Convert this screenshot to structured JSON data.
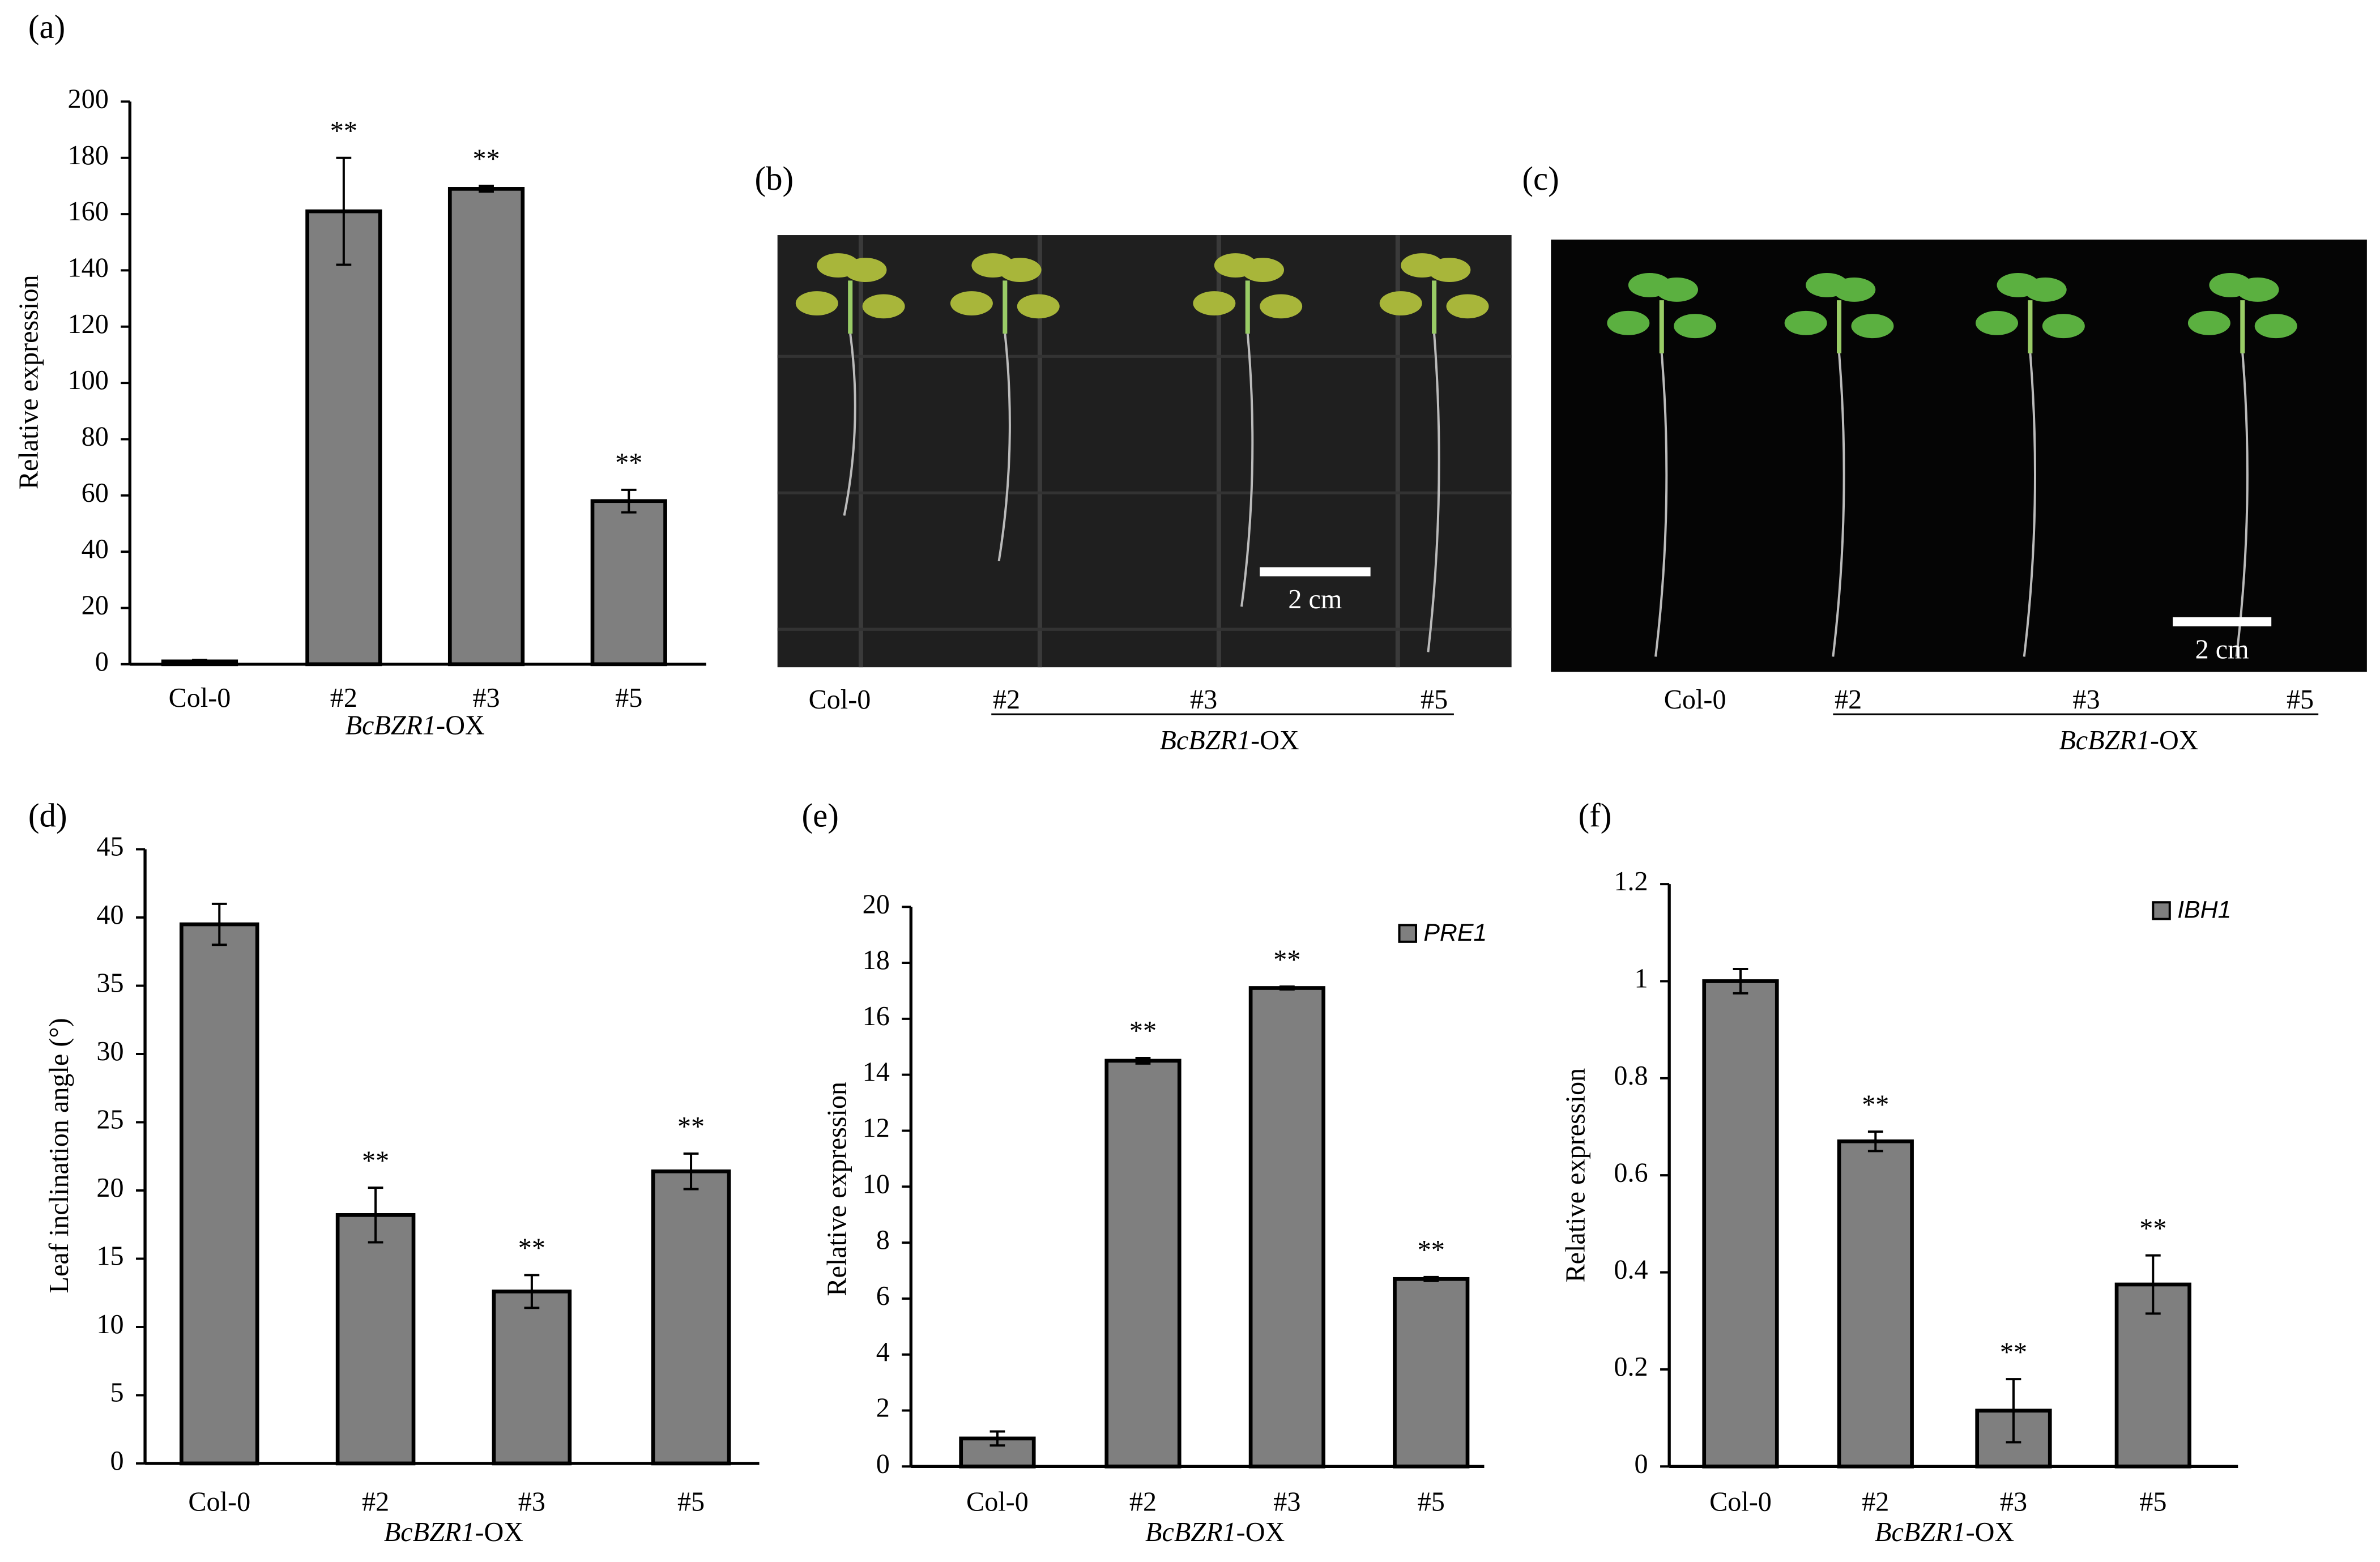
{
  "chart_data": [
    {
      "type": "bar",
      "panel_label": "(a)",
      "ylabel": "Relative expression",
      "xlabel_italic": "BcBZR1",
      "xlabel_roman": "-OX",
      "categories": [
        "Col-0",
        "#2",
        "#3",
        "#5"
      ],
      "values": [
        1,
        161,
        169,
        58
      ],
      "errors": [
        0.5,
        19,
        1,
        4
      ],
      "significance": [
        null,
        "**",
        "**",
        "**"
      ],
      "color": "#7f7f7f",
      "ylim": [
        0,
        200
      ],
      "yticks": [
        0,
        20,
        40,
        60,
        80,
        100,
        120,
        140,
        160,
        180,
        200
      ]
    },
    {
      "type": "bar",
      "panel_label": "(d)",
      "ylabel": "Leaf inclination angle (°)",
      "xlabel_italic": "BcBZR1",
      "xlabel_roman": "-OX",
      "categories": [
        "Col-0",
        "#2",
        "#3",
        "#5"
      ],
      "values": [
        39.5,
        18.2,
        12.6,
        21.4
      ],
      "errors": [
        1.5,
        2,
        1.2,
        1.3
      ],
      "significance": [
        null,
        "**",
        "**",
        "**"
      ],
      "color": "#7f7f7f",
      "ylim": [
        0,
        45
      ],
      "yticks": [
        0,
        5,
        10,
        15,
        20,
        25,
        30,
        35,
        40,
        45
      ]
    },
    {
      "type": "bar",
      "panel_label": "(e)",
      "ylabel": "Relative expression",
      "xlabel_italic": "BcBZR1",
      "xlabel_roman": "-OX",
      "legend": "PRE1",
      "legend_loc": "upper right",
      "categories": [
        "Col-0",
        "#2",
        "#3",
        "#5"
      ],
      "values": [
        1.0,
        14.5,
        17.1,
        6.7
      ],
      "errors": [
        0.25,
        0.1,
        0.05,
        0.07
      ],
      "significance": [
        null,
        "**",
        "**",
        "**"
      ],
      "color": "#7f7f7f",
      "ylim": [
        0,
        20
      ],
      "yticks": [
        0,
        2,
        4,
        6,
        8,
        10,
        12,
        14,
        16,
        18,
        20
      ]
    },
    {
      "type": "bar",
      "panel_label": "(f)",
      "ylabel": "Relative expression",
      "xlabel_italic": "BcBZR1",
      "xlabel_roman": "-OX",
      "legend": "IBH1",
      "legend_loc": "upper right",
      "categories": [
        "Col-0",
        "#2",
        "#3",
        "#5"
      ],
      "values": [
        1.0,
        0.67,
        0.115,
        0.375
      ],
      "errors": [
        0.025,
        0.02,
        0.065,
        0.06
      ],
      "significance": [
        null,
        "**",
        "**",
        "**"
      ],
      "color": "#7f7f7f",
      "ylim": [
        0,
        1.2
      ],
      "yticks": [
        0,
        0.2,
        0.4,
        0.6,
        0.8,
        1,
        1.2
      ]
    }
  ],
  "photos": [
    {
      "panel_label": "(b)",
      "categories": [
        "Col-0",
        "#2",
        "#3",
        "#5"
      ],
      "group_label_italic": "BcBZR1",
      "group_label_roman": "-OX",
      "scale_bar": "2 cm"
    },
    {
      "panel_label": "(c)",
      "categories": [
        "Col-0",
        "#2",
        "#3",
        "#5"
      ],
      "group_label_italic": "BcBZR1",
      "group_label_roman": "-OX",
      "scale_bar": "2 cm"
    }
  ]
}
